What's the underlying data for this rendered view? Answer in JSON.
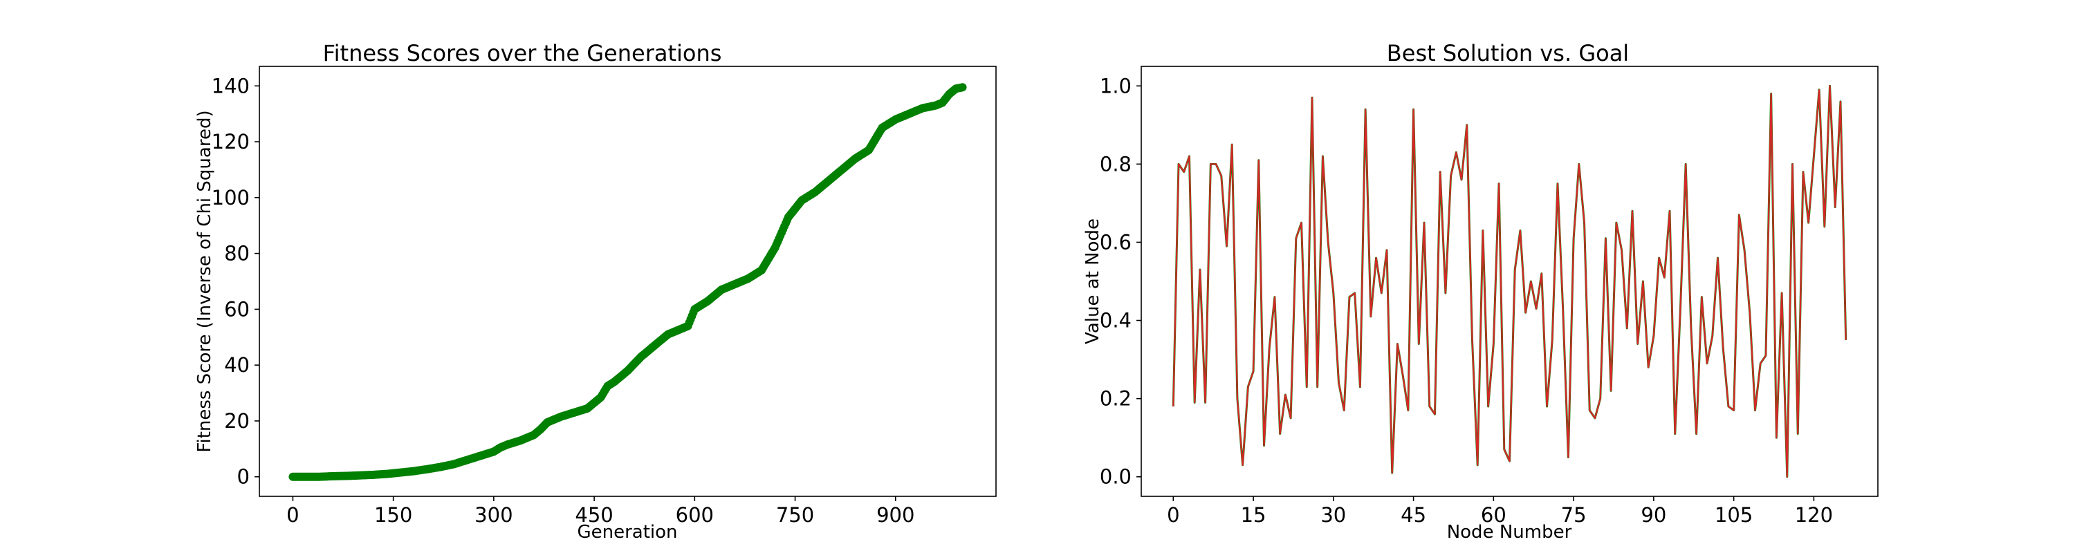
{
  "chart_data": [
    {
      "type": "scatter",
      "title": "Fitness Scores over the Generations",
      "xlabel": "Generation",
      "ylabel": "Fitness Score (Inverse of Chi Squared)",
      "xlim": [
        -50,
        1050
      ],
      "ylim": [
        -7,
        147
      ],
      "xticks": [
        "0",
        "150",
        "300",
        "450",
        "600",
        "750",
        "900"
      ],
      "yticks": [
        "0",
        "20",
        "40",
        "60",
        "80",
        "100",
        "120",
        "140"
      ],
      "grid": false,
      "legend": "none",
      "color": "#008000",
      "series": [
        {
          "x": [
            0,
            20,
            40,
            60,
            80,
            100,
            120,
            140,
            160,
            180,
            200,
            220,
            240,
            260,
            280,
            300,
            310,
            320,
            340,
            360,
            370,
            380,
            400,
            420,
            440,
            460,
            470,
            480,
            500,
            520,
            540,
            560,
            580,
            590,
            600,
            620,
            640,
            660,
            680,
            700,
            720,
            740,
            760,
            780,
            800,
            820,
            840,
            860,
            870,
            880,
            900,
            920,
            940,
            960,
            970,
            980,
            990,
            1000
          ],
          "y": [
            0,
            0,
            0,
            0.2,
            0.3,
            0.5,
            0.7,
            1.0,
            1.5,
            2.0,
            2.7,
            3.5,
            4.5,
            6.0,
            7.5,
            9.0,
            10.5,
            11.5,
            13.0,
            15.0,
            17.0,
            19.5,
            21.5,
            23.0,
            24.5,
            28.5,
            32.5,
            34.0,
            38.0,
            43.0,
            47.0,
            51.0,
            53.0,
            54.0,
            60.0,
            63.0,
            67.0,
            69.0,
            71.0,
            74.0,
            82.0,
            93.0,
            99.0,
            102.0,
            106.0,
            110.0,
            114.0,
            117.0,
            121.0,
            125.0,
            128.0,
            130.0,
            132.0,
            133.0,
            134.0,
            137.0,
            139.0,
            139.5
          ]
        }
      ]
    },
    {
      "type": "line",
      "title": "Best Solution vs. Goal",
      "xlabel": "Node Number",
      "ylabel": "Value at Node",
      "xlim": [
        -6,
        132
      ],
      "ylim": [
        -0.05,
        1.05
      ],
      "xticks": [
        "0",
        "15",
        "30",
        "45",
        "60",
        "75",
        "90",
        "105",
        "120"
      ],
      "yticks": [
        "0.0",
        "0.2",
        "0.4",
        "0.6",
        "0.8",
        "1.0"
      ],
      "grid": false,
      "legend": "none",
      "colors": [
        "#008000",
        "#d62728"
      ],
      "series": [
        {
          "values": [
            0.18,
            0.8,
            0.78,
            0.82,
            0.19,
            0.53,
            0.19,
            0.8,
            0.8,
            0.77,
            0.59,
            0.85,
            0.2,
            0.03,
            0.23,
            0.27,
            0.81,
            0.08,
            0.33,
            0.46,
            0.11,
            0.21,
            0.15,
            0.61,
            0.65,
            0.23,
            0.97,
            0.23,
            0.82,
            0.6,
            0.47,
            0.24,
            0.17,
            0.46,
            0.47,
            0.23,
            0.94,
            0.41,
            0.56,
            0.47,
            0.58,
            0.01,
            0.34,
            0.26,
            0.17,
            0.94,
            0.34,
            0.65,
            0.18,
            0.16,
            0.78,
            0.47,
            0.77,
            0.83,
            0.76,
            0.9,
            0.35,
            0.03,
            0.63,
            0.18,
            0.34,
            0.75,
            0.07,
            0.04,
            0.53,
            0.63,
            0.42,
            0.5,
            0.43,
            0.52,
            0.18,
            0.35,
            0.75,
            0.43,
            0.05,
            0.61,
            0.8,
            0.65,
            0.17,
            0.15,
            0.2,
            0.61,
            0.22,
            0.65,
            0.58,
            0.38,
            0.68,
            0.34,
            0.5,
            0.28,
            0.36,
            0.56,
            0.51,
            0.68,
            0.11,
            0.43,
            0.8,
            0.38,
            0.11,
            0.46,
            0.29,
            0.36,
            0.56,
            0.33,
            0.18,
            0.17,
            0.67,
            0.58,
            0.42,
            0.17,
            0.29,
            0.31,
            0.98,
            0.1,
            0.47,
            0.0,
            0.8,
            0.11,
            0.78,
            0.65,
            0.82,
            0.99,
            0.64,
            1.0,
            0.69,
            0.96,
            0.35
          ]
        },
        {
          "values": [
            0.18,
            0.8,
            0.78,
            0.82,
            0.19,
            0.53,
            0.19,
            0.8,
            0.8,
            0.77,
            0.59,
            0.85,
            0.2,
            0.03,
            0.23,
            0.27,
            0.81,
            0.08,
            0.33,
            0.46,
            0.11,
            0.21,
            0.15,
            0.61,
            0.65,
            0.23,
            0.97,
            0.23,
            0.82,
            0.6,
            0.47,
            0.24,
            0.17,
            0.46,
            0.47,
            0.23,
            0.94,
            0.41,
            0.56,
            0.47,
            0.58,
            0.01,
            0.34,
            0.26,
            0.17,
            0.94,
            0.34,
            0.65,
            0.18,
            0.16,
            0.78,
            0.47,
            0.77,
            0.83,
            0.76,
            0.9,
            0.35,
            0.03,
            0.63,
            0.18,
            0.34,
            0.75,
            0.07,
            0.04,
            0.53,
            0.63,
            0.42,
            0.5,
            0.43,
            0.52,
            0.18,
            0.35,
            0.75,
            0.43,
            0.05,
            0.61,
            0.8,
            0.65,
            0.17,
            0.15,
            0.2,
            0.61,
            0.22,
            0.65,
            0.58,
            0.38,
            0.68,
            0.34,
            0.5,
            0.28,
            0.36,
            0.56,
            0.51,
            0.68,
            0.11,
            0.43,
            0.8,
            0.38,
            0.11,
            0.46,
            0.29,
            0.36,
            0.56,
            0.33,
            0.18,
            0.17,
            0.67,
            0.58,
            0.42,
            0.17,
            0.29,
            0.31,
            0.98,
            0.1,
            0.47,
            0.0,
            0.8,
            0.11,
            0.78,
            0.65,
            0.82,
            0.99,
            0.64,
            1.0,
            0.69,
            0.96,
            0.35
          ]
        }
      ]
    }
  ]
}
